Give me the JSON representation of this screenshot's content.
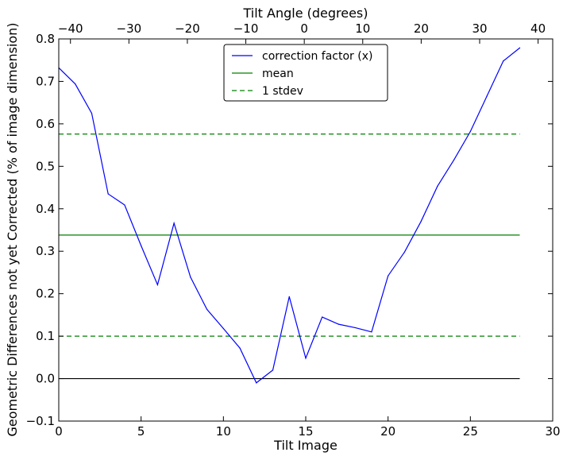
{
  "chart_data": {
    "type": "line",
    "xlabel": "Tilt Image",
    "ylabel": "Geometric Differences not yet Corrected (% of image dimension)",
    "x2label": "Tilt Angle (degrees)",
    "xlim": [
      0,
      30
    ],
    "ylim": [
      -0.1,
      0.8
    ],
    "x2lim": [
      -42,
      42.5
    ],
    "xticks": [
      0,
      5,
      10,
      15,
      20,
      25,
      30
    ],
    "yticks": [
      -0.1,
      0.0,
      0.1,
      0.2,
      0.3,
      0.4,
      0.5,
      0.6,
      0.7,
      0.8
    ],
    "x2ticks": [
      -40,
      -30,
      -20,
      -10,
      0,
      10,
      20,
      30,
      40
    ],
    "xtick_labels": [
      "0",
      "5",
      "10",
      "15",
      "20",
      "25",
      "30"
    ],
    "ytick_labels": [
      "−0.1",
      "0.0",
      "0.1",
      "0.2",
      "0.3",
      "0.4",
      "0.5",
      "0.6",
      "0.7",
      "0.8"
    ],
    "x2tick_labels": [
      "−40",
      "−30",
      "−20",
      "−10",
      "0",
      "10",
      "20",
      "30",
      "40"
    ],
    "grid": false,
    "legend_position": "top-center",
    "series": [
      {
        "name": "correction factor (x)",
        "color": "#0000ff",
        "style": "solid",
        "x": [
          0,
          1,
          2,
          3,
          4,
          5,
          6,
          7,
          8,
          9,
          10,
          11,
          12,
          13,
          14,
          15,
          16,
          17,
          18,
          19,
          20,
          21,
          22,
          23,
          24,
          25,
          26,
          27,
          28
        ],
        "y": [
          0.732,
          0.694,
          0.625,
          0.435,
          0.409,
          0.313,
          0.221,
          0.366,
          0.239,
          0.163,
          0.118,
          0.072,
          -0.01,
          0.02,
          0.193,
          0.048,
          0.145,
          0.128,
          0.12,
          0.11,
          0.242,
          0.298,
          0.37,
          0.453,
          0.515,
          0.582,
          0.665,
          0.748,
          0.779
        ]
      },
      {
        "name": "mean",
        "color": "#008000",
        "style": "solid",
        "x": [
          0,
          28
        ],
        "y": [
          0.338,
          0.338
        ]
      },
      {
        "name": "1 stdev",
        "color": "#008000",
        "style": "dashed",
        "x": [
          0,
          28
        ],
        "y": [
          0.576,
          0.576
        ]
      },
      {
        "name": "",
        "color": "#008000",
        "style": "dashed",
        "x": [
          0,
          28
        ],
        "y": [
          0.1,
          0.1
        ]
      },
      {
        "name": "",
        "color": "#000000",
        "style": "solid",
        "x": [
          0,
          28
        ],
        "y": [
          0.0,
          0.0
        ]
      }
    ]
  }
}
